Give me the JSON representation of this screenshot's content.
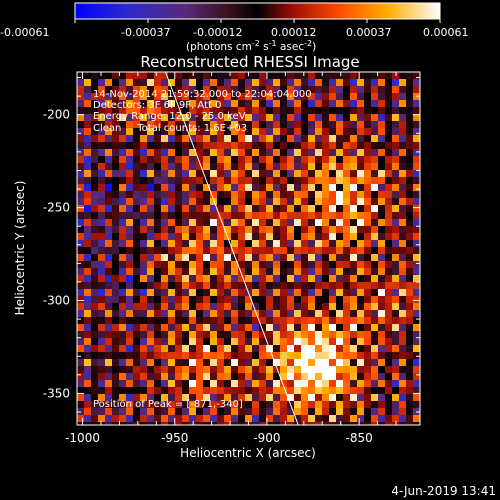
{
  "colorbar": {
    "tick_labels": [
      "-0.00061",
      "-0.00037",
      "-0.00012",
      "0.00012",
      "0.00037",
      "0.00061"
    ],
    "units": "(photons cm",
    "units_exp1": "-2",
    "units_mid": " s",
    "units_exp2": "-1",
    "units_mid2": " asec",
    "units_exp3": "-2",
    "units_end": ")",
    "range": [
      -0.00061,
      0.00061
    ]
  },
  "chart_data": {
    "type": "heatmap",
    "title": "Reconstructed RHESSI Image",
    "xlabel": "Heliocentric X (arcsec)",
    "ylabel": "Heliocentric Y (arcsec)",
    "xlim": [
      -1003,
      -817
    ],
    "ylim": [
      -367,
      -177
    ],
    "x_ticks": [
      -1000,
      -950,
      -900,
      -850
    ],
    "y_ticks": [
      -350,
      -300,
      -250,
      -200
    ],
    "x_tick_labels": [
      "-1000",
      "-950",
      "-900",
      "-850"
    ],
    "y_tick_labels": [
      "-350",
      "-300",
      "-250",
      "-200"
    ],
    "limb_line": [
      [
        -955,
        -177
      ],
      [
        -883,
        -367
      ]
    ],
    "peak_position": [
      -871,
      -340
    ],
    "bright_spots": [
      {
        "x": -870,
        "y": -338,
        "v": 1.0
      },
      {
        "x": -880,
        "y": -330,
        "v": 0.75
      },
      {
        "x": -935,
        "y": -335,
        "v": 0.7
      },
      {
        "x": -944,
        "y": -278,
        "v": 0.65
      },
      {
        "x": -860,
        "y": -254,
        "v": 0.65
      },
      {
        "x": -858,
        "y": -232,
        "v": 0.55
      },
      {
        "x": -905,
        "y": -263,
        "v": 0.55
      },
      {
        "x": -965,
        "y": -196,
        "v": 0.5
      },
      {
        "x": -920,
        "y": -216,
        "v": 0.55
      },
      {
        "x": -840,
        "y": -300,
        "v": 0.5
      }
    ]
  },
  "annotations": {
    "line1": "14-Nov-2014 21:59:32.000 to 22:04:04.000",
    "line2": "Detectors: 3F 6F 9F, Att 0",
    "line3": "Energy Range: 12.0 - 25.0 keV",
    "line4": "Clean     Total counts: 1.6E+03",
    "peak": "Position of Peak = [-871,-340]"
  },
  "footer": {
    "date": "4-Jun-2019 13:41"
  }
}
